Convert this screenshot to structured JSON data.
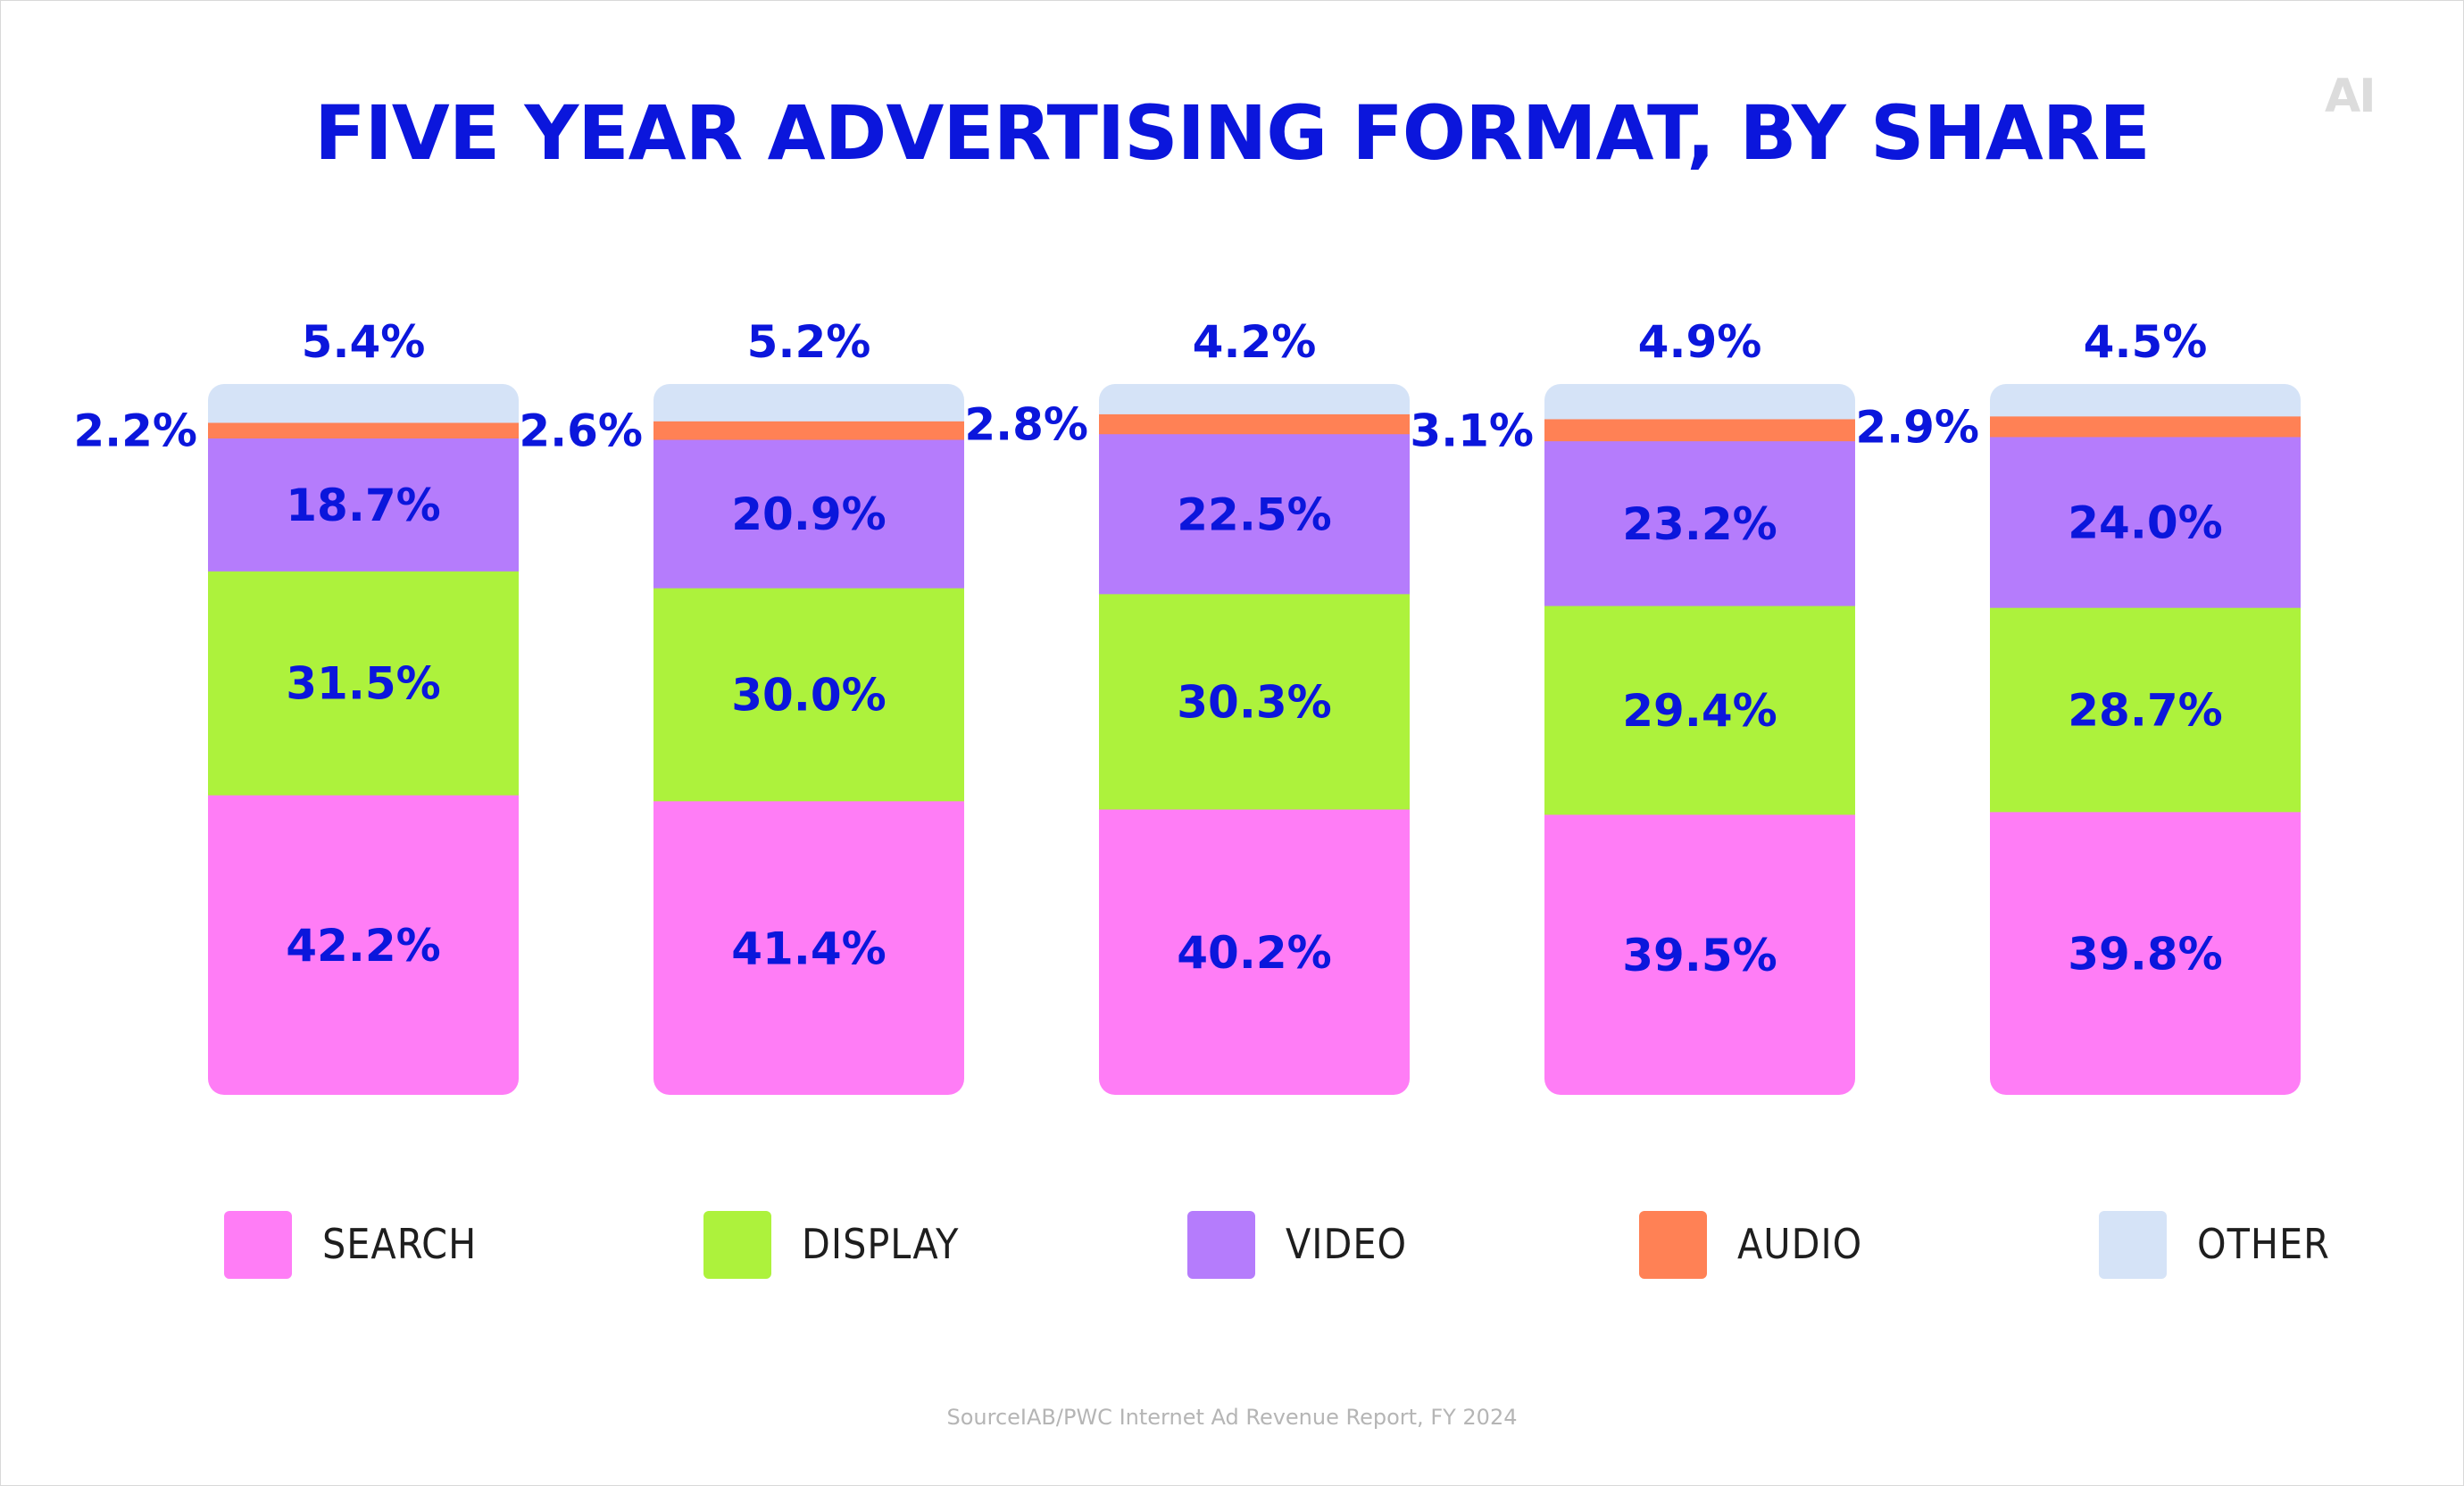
{
  "header": {
    "title": "FIVE YEAR ADVERTISING FORMAT, BY SHARE",
    "logo": "AI"
  },
  "footer": {
    "source": "SourceIAB/PWC Internet Ad Revenue Report, FY 2024"
  },
  "colors": {
    "search": "#ff7df6",
    "display": "#adf23c",
    "video": "#b57cfc",
    "audio": "#ff8155",
    "other": "#d5e3f7",
    "label": "#0b16dc"
  },
  "legend": [
    {
      "key": "search",
      "label": "SEARCH"
    },
    {
      "key": "display",
      "label": "DISPLAY"
    },
    {
      "key": "video",
      "label": "VIDEO"
    },
    {
      "key": "audio",
      "label": "AUDIO"
    },
    {
      "key": "other",
      "label": "OTHER"
    }
  ],
  "chart_data": {
    "type": "bar",
    "stacked": true,
    "title": "FIVE YEAR ADVERTISING FORMAT, BY SHARE",
    "categories": [
      "",
      "",
      "",
      "",
      ""
    ],
    "series": [
      {
        "name": "SEARCH",
        "key": "search",
        "values": [
          42.2,
          41.4,
          40.2,
          39.5,
          39.8
        ],
        "labels": [
          "42.2%",
          "41.4%",
          "40.2%",
          "39.5%",
          "39.8%"
        ]
      },
      {
        "name": "DISPLAY",
        "key": "display",
        "values": [
          31.5,
          30.0,
          30.3,
          29.4,
          28.7
        ],
        "labels": [
          "31.5%",
          "30.0%",
          "30.3%",
          "29.4%",
          "28.7%"
        ]
      },
      {
        "name": "VIDEO",
        "key": "video",
        "values": [
          18.7,
          20.9,
          22.5,
          23.2,
          24.0
        ],
        "labels": [
          "18.7%",
          "20.9%",
          "22.5%",
          "23.2%",
          "24.0%"
        ]
      },
      {
        "name": "AUDIO",
        "key": "audio",
        "values": [
          2.2,
          2.6,
          2.8,
          3.1,
          2.9
        ],
        "labels": [
          "2.2%",
          "2.6%",
          "2.8%",
          "3.1%",
          "2.9%"
        ]
      },
      {
        "name": "OTHER",
        "key": "other",
        "values": [
          5.4,
          5.2,
          4.2,
          4.9,
          4.5
        ],
        "labels": [
          "5.4%",
          "5.2%",
          "4.2%",
          "4.9%",
          "4.5%"
        ]
      }
    ],
    "ylim": [
      0,
      100
    ],
    "grid": false,
    "legend_position": "bottom"
  }
}
